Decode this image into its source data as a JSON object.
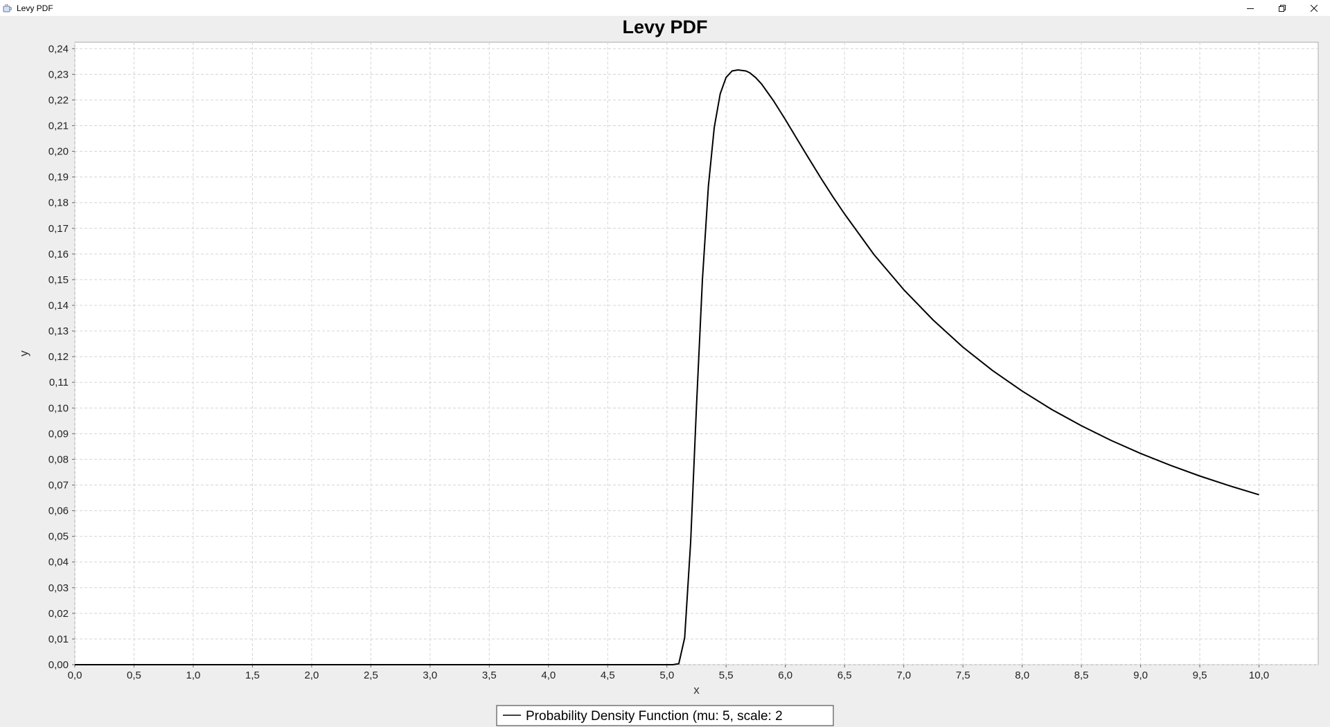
{
  "window": {
    "title": "Levy PDF",
    "controls": {
      "minimize_icon": "minimize-icon",
      "restore_icon": "restore-icon",
      "close_icon": "close-icon"
    }
  },
  "colors": {
    "background": "#eeeeee",
    "plot_background": "#ffffff",
    "grid": "#d4d4d4",
    "line": "#000000"
  },
  "chart_data": {
    "type": "line",
    "title": "Levy PDF",
    "xlabel": "x",
    "ylabel": "y",
    "xlim": [
      0.0,
      10.5
    ],
    "ylim": [
      0.0,
      0.2425
    ],
    "grid": true,
    "legend_position": "bottom-center",
    "x_ticks": [
      "0,0",
      "0,5",
      "1,0",
      "1,5",
      "2,0",
      "2,5",
      "3,0",
      "3,5",
      "4,0",
      "4,5",
      "5,0",
      "5,5",
      "6,0",
      "6,5",
      "7,0",
      "7,5",
      "8,0",
      "8,5",
      "9,0",
      "9,5",
      "10,0"
    ],
    "y_ticks": [
      "0,00",
      "0,01",
      "0,02",
      "0,03",
      "0,04",
      "0,05",
      "0,06",
      "0,07",
      "0,08",
      "0,09",
      "0,10",
      "0,11",
      "0,12",
      "0,13",
      "0,14",
      "0,15",
      "0,16",
      "0,17",
      "0,18",
      "0,19",
      "0,20",
      "0,21",
      "0,22",
      "0,23",
      "0,24"
    ],
    "series": [
      {
        "name": "Probability Density Function (mu: 5, scale: 2",
        "color": "#000000",
        "x": [
          0.0,
          0.5,
          1.0,
          1.5,
          2.0,
          2.5,
          3.0,
          3.5,
          4.0,
          4.5,
          5.0,
          5.05,
          5.1,
          5.15,
          5.2,
          5.25,
          5.3,
          5.35,
          5.4,
          5.45,
          5.5,
          5.55,
          5.6,
          5.667,
          5.7,
          5.75,
          5.8,
          5.9,
          6.0,
          6.1,
          6.2,
          6.3,
          6.4,
          6.5,
          6.75,
          7.0,
          7.25,
          7.5,
          7.75,
          8.0,
          8.25,
          8.5,
          8.75,
          9.0,
          9.25,
          9.5,
          9.75,
          10.0
        ],
        "y": [
          0.0,
          0.0,
          0.0,
          0.0,
          0.0,
          0.0,
          0.0,
          0.0,
          0.0,
          0.0,
          0.0,
          0.0,
          0.00037,
          0.0105,
          0.0476,
          0.101,
          0.1499,
          0.1863,
          0.2093,
          0.2224,
          0.2288,
          0.2313,
          0.2317,
          0.2313,
          0.2306,
          0.2287,
          0.2262,
          0.2197,
          0.2124,
          0.2047,
          0.1971,
          0.1896,
          0.1824,
          0.1756,
          0.1597,
          0.1461,
          0.1342,
          0.1237,
          0.1146,
          0.1066,
          0.0994,
          0.0931,
          0.0874,
          0.0823,
          0.0777,
          0.0735,
          0.0697,
          0.0662
        ]
      }
    ]
  }
}
